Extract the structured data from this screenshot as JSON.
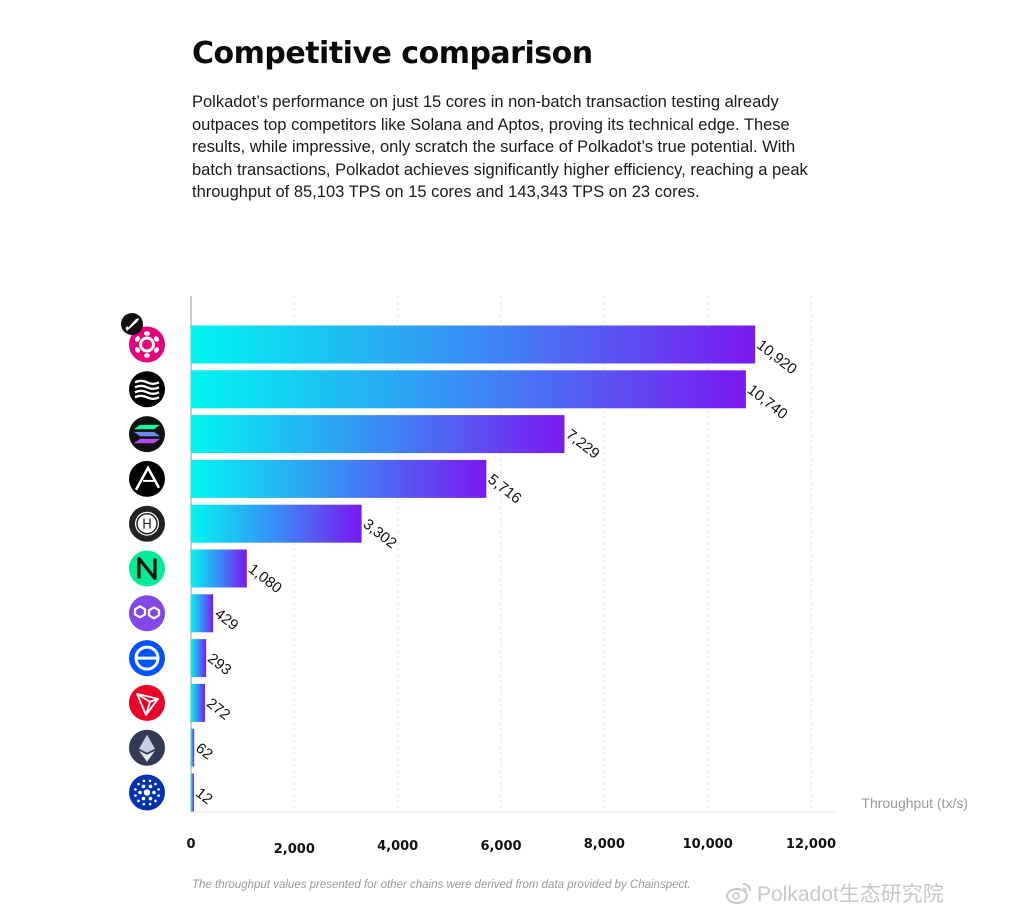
{
  "title": "Competitive comparison",
  "description": "Polkadot’s performance on just 15 cores in non-batch transaction testing already outpaces top competitors like Solana and Aptos, proving its technical edge. These results, while impressive, only scratch the surface of Polkadot’s true potential. With batch transactions, Polkadot achieves significantly higher efficiency, reaching a peak throughput of 85,103 TPS on 15 cores and 143,343 TPS on 23 cores.",
  "footnote": "The throughput values presented for other chains were derived from data provided by Chainspect.",
  "watermark": "Polkadot生态研究院",
  "colors": {
    "bar_start": "#00f5f0",
    "bar_mid": "#3a8cf5",
    "bar_end": "#7a18f0",
    "grid": "#e4e4e4",
    "axis_label": "#9a9a9a"
  },
  "chart_data": {
    "type": "bar",
    "orientation": "horizontal",
    "categories": [
      "polkadot-logo",
      "sui-logo",
      "solana-logo",
      "aptos-logo",
      "hedera-logo",
      "near-logo",
      "polygon-logo",
      "algorand-logo",
      "tron-logo",
      "ethereum-logo",
      "cardano-logo"
    ],
    "values": [
      10920,
      10740,
      7229,
      5716,
      3302,
      1080,
      429,
      293,
      272,
      62,
      12
    ],
    "value_labels": [
      "10,920",
      "10,740",
      "7,229",
      "5,716",
      "3,302",
      "1,080",
      "429",
      "293",
      "272",
      "62",
      "12"
    ],
    "xlabel": "Throughput (tx/s)",
    "ylabel": "",
    "xlim": [
      0,
      12000
    ],
    "xticks": [
      0,
      2000,
      4000,
      6000,
      8000,
      10000,
      12000
    ],
    "xtick_labels": [
      "0",
      "2,000",
      "4,000",
      "6,000",
      "8,000",
      "10,000",
      "12,000"
    ],
    "grid": true,
    "logo_colors": [
      "#e6007a",
      "#000000",
      "#111111",
      "#000000",
      "#222222",
      "#00ec97",
      "#8247e5",
      "#0052ff",
      "#eb0029",
      "#343a56",
      "#0033ad"
    ],
    "badge_icon": "rocket-icon"
  }
}
